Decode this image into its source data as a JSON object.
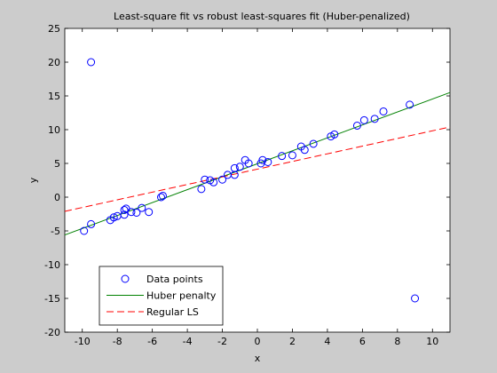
{
  "chart_data": {
    "type": "scatter",
    "title": "Least-square fit vs robust least-squares fit (Huber-penalized)",
    "xlabel": "x",
    "ylabel": "y",
    "xlim": [
      -11,
      11
    ],
    "ylim": [
      -20,
      25
    ],
    "xticks": [
      -10,
      -8,
      -6,
      -4,
      -2,
      0,
      2,
      4,
      6,
      8,
      10
    ],
    "yticks": [
      -20,
      -15,
      -10,
      -5,
      0,
      5,
      10,
      15,
      20,
      25
    ],
    "grid": false,
    "legend_position": "bottom-left",
    "series": [
      {
        "name": "Data points",
        "kind": "markers",
        "marker": "circle",
        "color": "#0000ff",
        "points": [
          [
            -9.5,
            20.0
          ],
          [
            9.0,
            -15.0
          ],
          [
            -9.9,
            -5.0
          ],
          [
            -9.5,
            -4.0
          ],
          [
            -8.4,
            -3.4
          ],
          [
            -8.2,
            -3.0
          ],
          [
            -8.0,
            -2.8
          ],
          [
            -7.6,
            -2.6
          ],
          [
            -7.6,
            -1.9
          ],
          [
            -7.5,
            -1.7
          ],
          [
            -7.2,
            -2.2
          ],
          [
            -6.9,
            -2.3
          ],
          [
            -6.6,
            -1.6
          ],
          [
            -6.2,
            -2.2
          ],
          [
            -5.5,
            0.0
          ],
          [
            -5.4,
            0.2
          ],
          [
            -3.2,
            1.2
          ],
          [
            -3.0,
            2.6
          ],
          [
            -2.7,
            2.5
          ],
          [
            -2.5,
            2.2
          ],
          [
            -2.0,
            2.6
          ],
          [
            -1.7,
            3.3
          ],
          [
            -1.3,
            3.3
          ],
          [
            -1.3,
            4.3
          ],
          [
            -1.0,
            4.5
          ],
          [
            -0.7,
            5.5
          ],
          [
            -0.5,
            5.0
          ],
          [
            0.2,
            5.0
          ],
          [
            0.3,
            5.5
          ],
          [
            0.6,
            5.2
          ],
          [
            1.4,
            6.1
          ],
          [
            2.0,
            6.2
          ],
          [
            2.5,
            7.5
          ],
          [
            2.7,
            7.0
          ],
          [
            3.2,
            7.9
          ],
          [
            4.2,
            9.0
          ],
          [
            4.4,
            9.3
          ],
          [
            5.7,
            10.6
          ],
          [
            6.1,
            11.4
          ],
          [
            6.7,
            11.6
          ],
          [
            7.2,
            12.7
          ],
          [
            8.7,
            13.7
          ]
        ]
      },
      {
        "name": "Huber penalty",
        "kind": "line",
        "dash": "solid",
        "color": "#008000",
        "points": [
          [
            -11,
            -5.6
          ],
          [
            11,
            15.5
          ]
        ]
      },
      {
        "name": "Regular LS",
        "kind": "line",
        "dash": "dashed",
        "color": "#ff0000",
        "points": [
          [
            -11,
            -2.1
          ],
          [
            11,
            10.4
          ]
        ]
      }
    ]
  }
}
